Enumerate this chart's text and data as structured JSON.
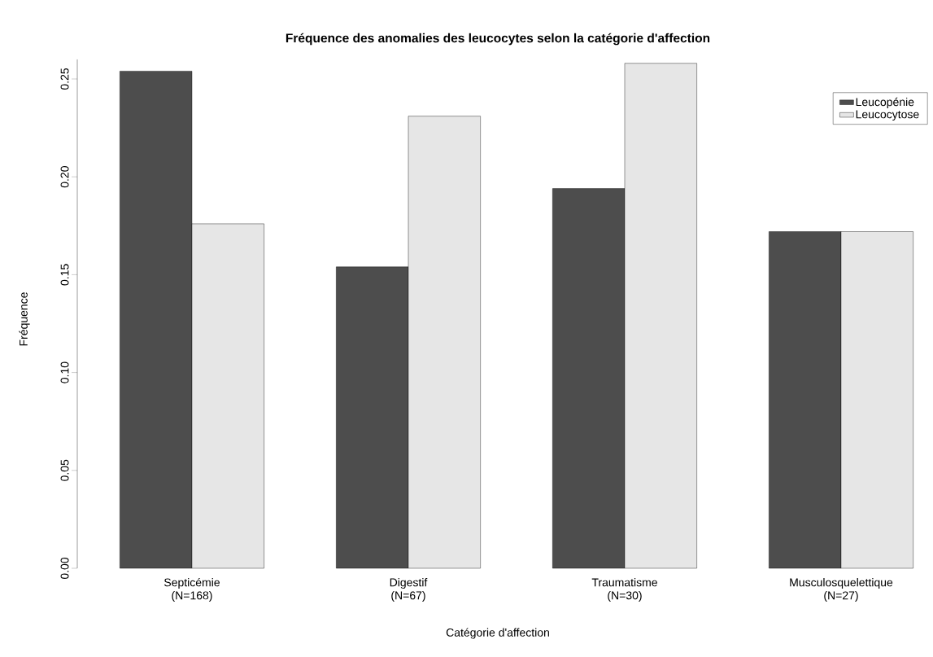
{
  "chart_data": {
    "type": "bar",
    "title": "Fréquence des anomalies des leucocytes selon la catégorie d'affection",
    "xlabel": "Catégorie d'affection",
    "ylabel": "Fréquence",
    "categories": [
      "Septicémie (N=168)",
      "Digestif (N=67)",
      "Traumatisme (N=30)",
      "Musculosquelettique (N=27)"
    ],
    "series": [
      {
        "name": "Leucopénie",
        "color": "#4d4d4d",
        "values": [
          0.254,
          0.154,
          0.194,
          0.172
        ]
      },
      {
        "name": "Leucocytose",
        "color": "#e6e6e6",
        "values": [
          0.176,
          0.231,
          0.258,
          0.172
        ]
      }
    ],
    "ylim": [
      0,
      0.26
    ],
    "yticks": [
      {
        "value": 0,
        "label": "0.00"
      },
      {
        "value": 0.05,
        "label": "0.05"
      },
      {
        "value": 0.1,
        "label": "0.10"
      },
      {
        "value": 0.15,
        "label": "0.15"
      },
      {
        "value": 0.2,
        "label": "0.20"
      },
      {
        "value": 0.25,
        "label": "0.25"
      }
    ],
    "legend": "top right",
    "grid": false
  }
}
